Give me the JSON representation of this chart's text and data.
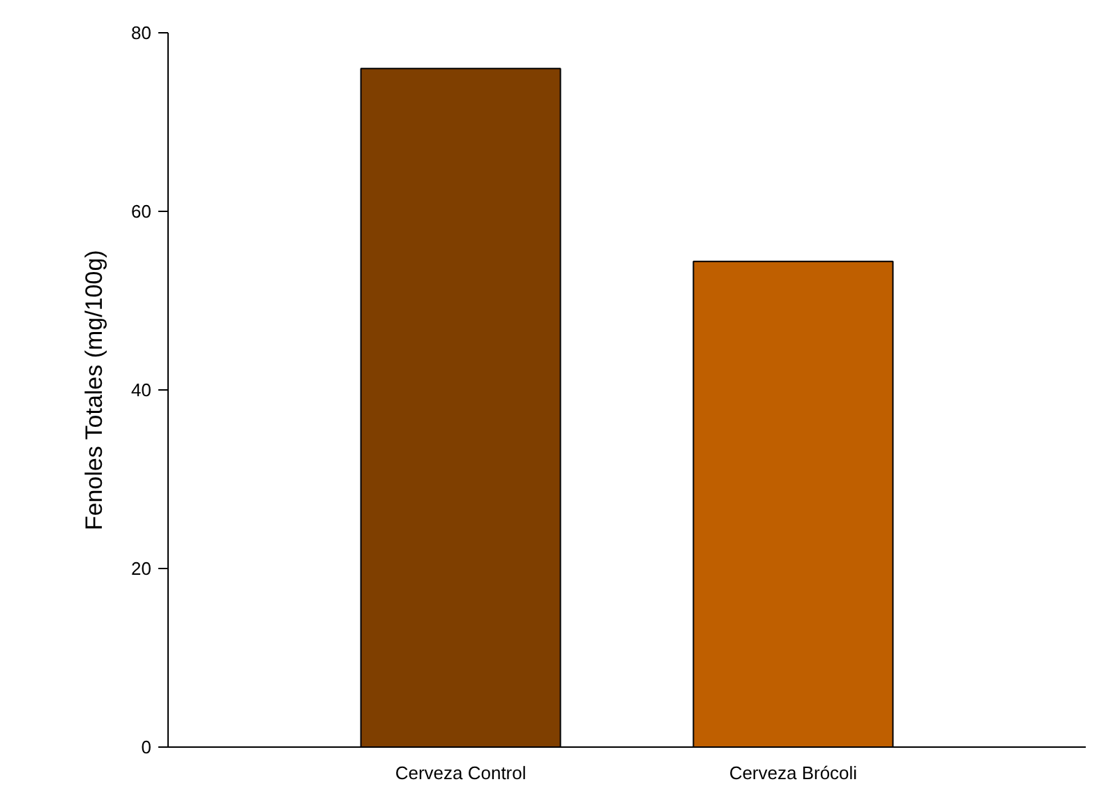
{
  "chart_data": {
    "type": "bar",
    "ylabel": "Fenoles Totales (mg/100g)",
    "categories": [
      "Cerveza Control",
      "Cerveza Brócoli"
    ],
    "values": [
      76,
      54.4
    ],
    "colors": [
      "#7f3f00",
      "#bf5f00"
    ],
    "ylim": [
      0,
      80
    ],
    "yticks": [
      0,
      20,
      40,
      60,
      80
    ],
    "grid": false
  }
}
